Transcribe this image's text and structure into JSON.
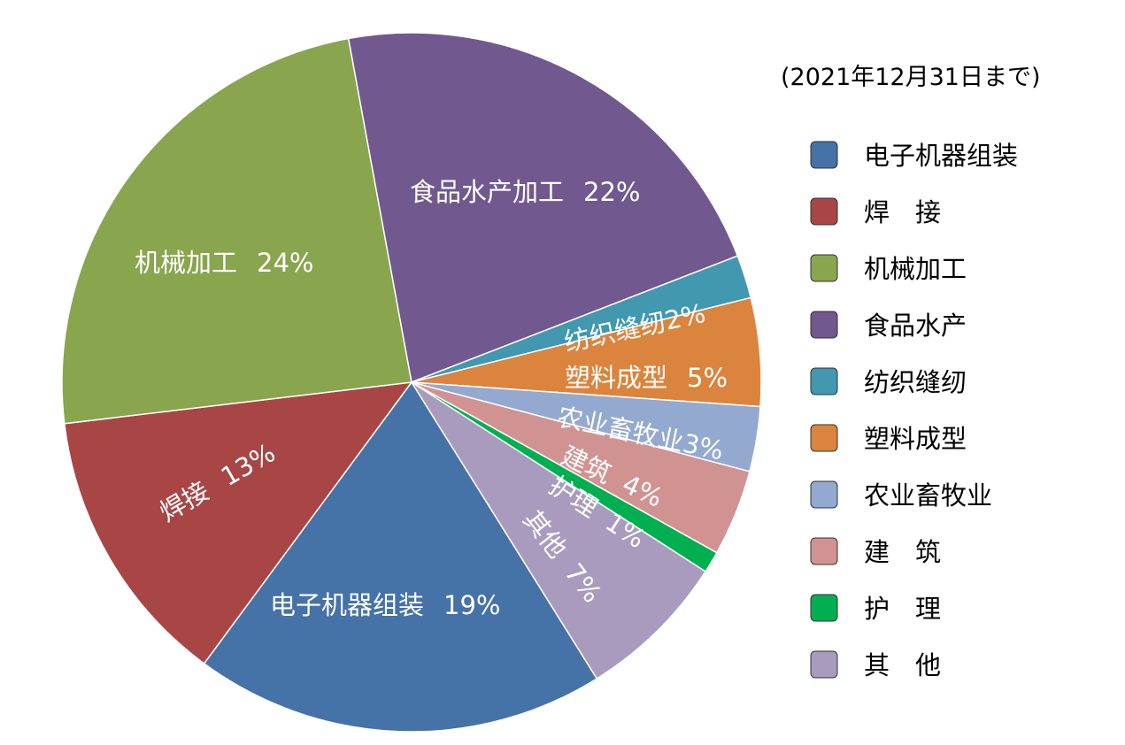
{
  "chart_data": {
    "type": "pie",
    "note": "(2021年12月31日まで)",
    "slices": [
      {
        "key": "electronics",
        "legend": "电子机器组装",
        "label": "电子机器组装",
        "pct": "19%",
        "value": 19,
        "color": "#4572a7"
      },
      {
        "key": "welding",
        "legend": "焊　接",
        "label": "焊接",
        "pct": "13%",
        "value": 13,
        "color": "#a84646"
      },
      {
        "key": "machining",
        "legend": "机械加工",
        "label": "机械加工",
        "pct": "24%",
        "value": 24,
        "color": "#89a54e"
      },
      {
        "key": "food",
        "legend": "食品水产",
        "label": "食品水产加工",
        "pct": "22%",
        "value": 22,
        "color": "#71588f"
      },
      {
        "key": "textile",
        "legend": "纺织缝纫",
        "label": "纺织缝纫",
        "pct": "2%",
        "value": 2,
        "color": "#4198af"
      },
      {
        "key": "plastic",
        "legend": "塑料成型",
        "label": "塑料成型",
        "pct": "5%",
        "value": 5,
        "color": "#db843d"
      },
      {
        "key": "agriculture",
        "legend": "农业畜牧业",
        "label": "农业畜牧业",
        "pct": "3%",
        "value": 3,
        "color": "#93a9cf"
      },
      {
        "key": "construction",
        "legend": "建　筑",
        "label": "建筑",
        "pct": "4%",
        "value": 4,
        "color": "#d19392"
      },
      {
        "key": "nursing",
        "legend": "护　理",
        "label": "护理",
        "pct": "1%",
        "value": 1,
        "color": "#00b050"
      },
      {
        "key": "other",
        "legend": "其　他",
        "label": "其他",
        "pct": "7%",
        "value": 7,
        "color": "#a99bbd"
      }
    ]
  }
}
